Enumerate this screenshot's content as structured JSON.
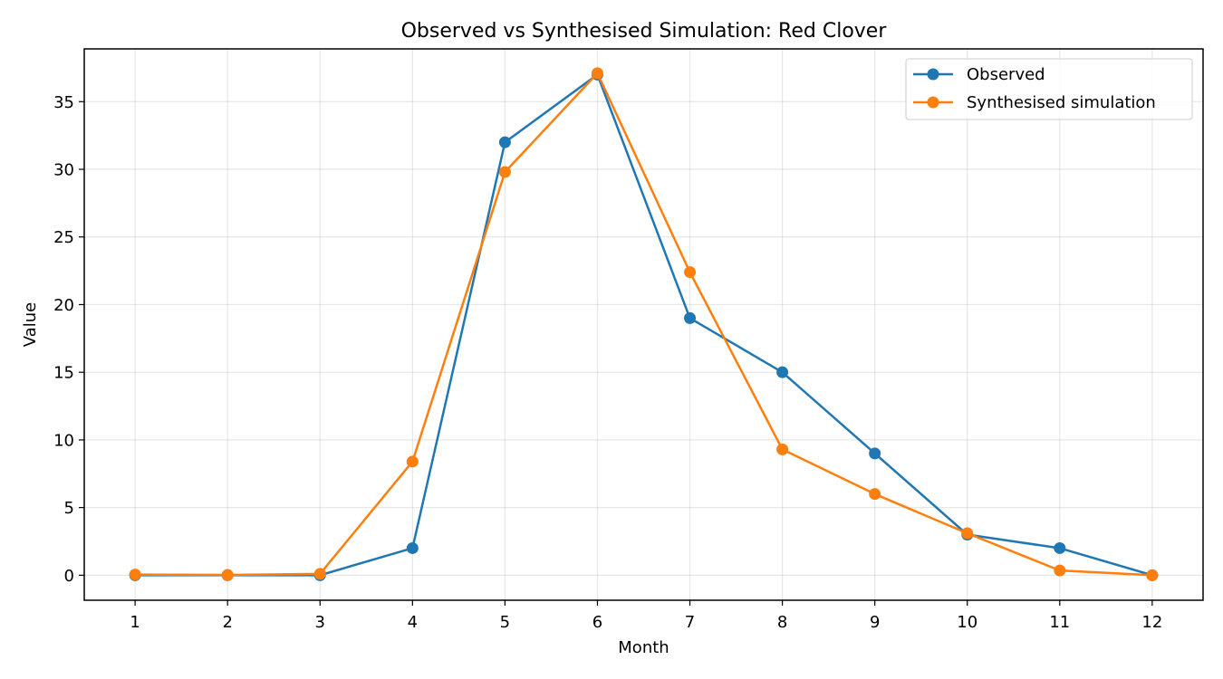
{
  "chart_data": {
    "type": "line",
    "title": "Observed vs Synthesised Simulation: Red Clover",
    "xlabel": "Month",
    "ylabel": "Value",
    "x": [
      1,
      2,
      3,
      4,
      5,
      6,
      7,
      8,
      9,
      10,
      11,
      12
    ],
    "xlim": [
      0.45,
      12.55
    ],
    "ylim": [
      -1.85,
      38.9
    ],
    "yticks": [
      0,
      5,
      10,
      15,
      20,
      25,
      30,
      35
    ],
    "grid": true,
    "legend_position": "top-right",
    "series": [
      {
        "name": "Observed",
        "color": "#1f77b4",
        "values": [
          0,
          0,
          0,
          2,
          32,
          37,
          19,
          15,
          9,
          3,
          2,
          0
        ]
      },
      {
        "name": "Synthesised simulation",
        "color": "#ff7f0e",
        "values": [
          0.05,
          0.02,
          0.1,
          8.4,
          29.8,
          37.1,
          22.4,
          9.3,
          6.0,
          3.1,
          0.35,
          0.0
        ]
      }
    ]
  }
}
